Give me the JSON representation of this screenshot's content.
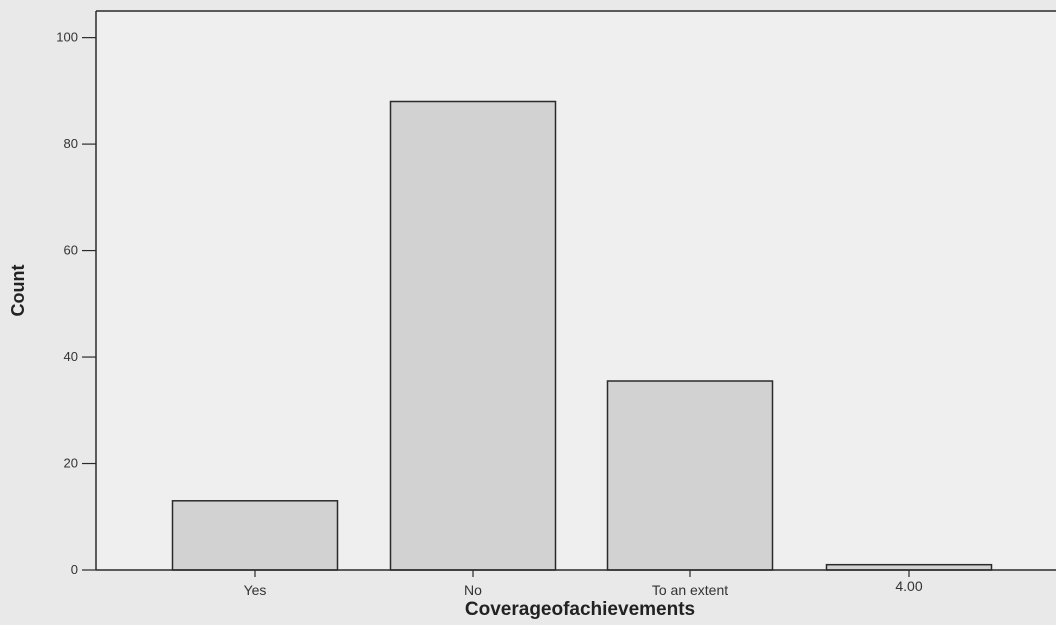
{
  "chart_data": {
    "type": "bar",
    "categories": [
      "Yes",
      "No",
      "To an extent",
      "4.00"
    ],
    "values": [
      13,
      88,
      35.5,
      1
    ],
    "yticks": [
      "0",
      "20",
      "40",
      "60",
      "80",
      "100"
    ],
    "ylim": [
      0,
      105
    ],
    "xlabel": "Coverageofachievements",
    "ylabel": "Count",
    "grid": false,
    "colors": {
      "bar": "#d2d2d2",
      "bar_stroke": "#2a2a2a",
      "plot_bg": "#efefef",
      "axis": "#2a2a2a"
    }
  }
}
